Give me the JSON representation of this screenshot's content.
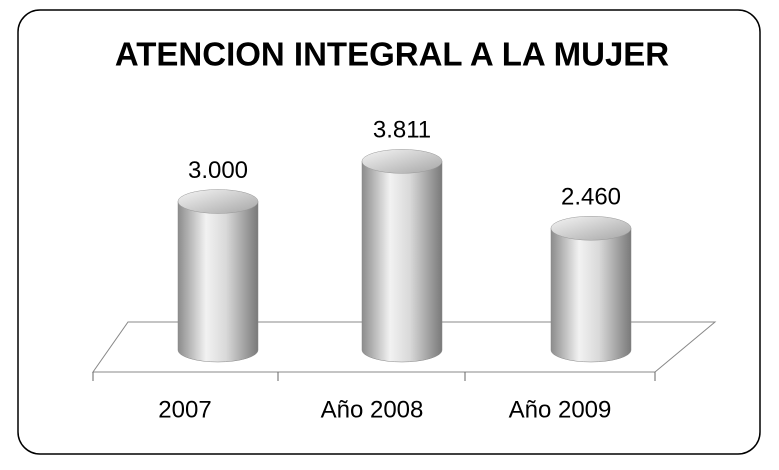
{
  "chart_data": {
    "type": "bar",
    "title": "ATENCION INTEGRAL A LA MUJER",
    "categories": [
      "2007",
      "Año 2008",
      "Año 2009"
    ],
    "values": [
      3000,
      3811,
      2460
    ],
    "value_labels": [
      "3.000",
      "3.811",
      "2.460"
    ],
    "color": "#bfbfbf"
  }
}
